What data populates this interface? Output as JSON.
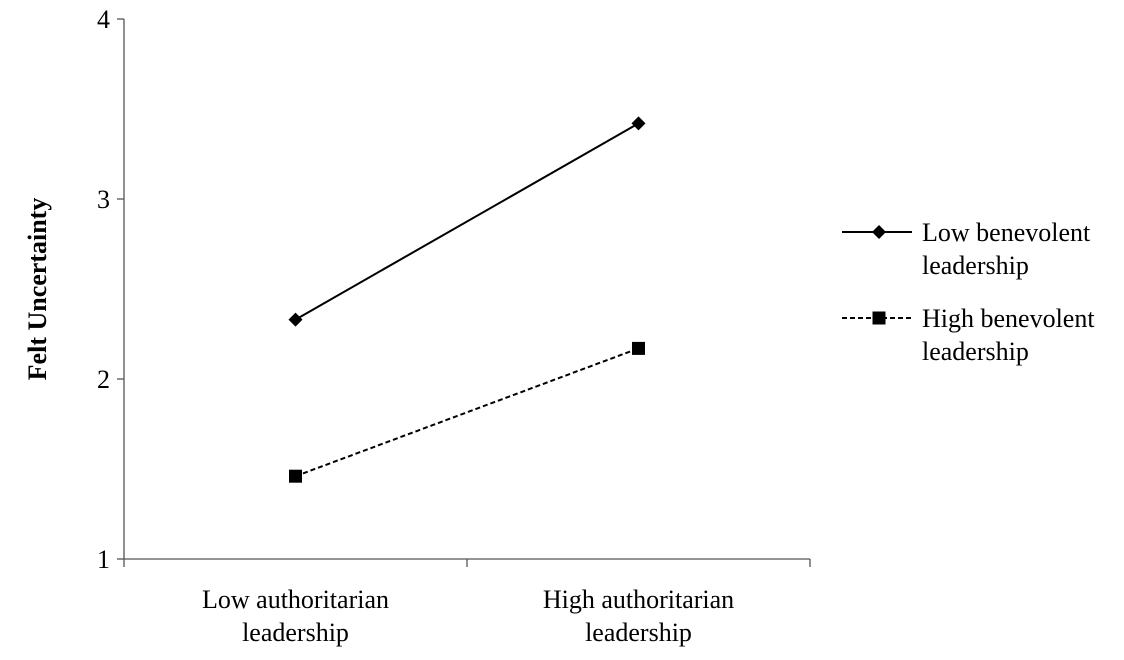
{
  "chart_data": {
    "type": "line",
    "title": "",
    "xlabel": "",
    "ylabel": "Felt Uncertainty",
    "ylim": [
      1,
      4
    ],
    "yticks": [
      "1",
      "2",
      "3",
      "4"
    ],
    "categories": [
      [
        "Low authoritarian",
        "leadership"
      ],
      [
        "High authoritarian",
        "leadership"
      ]
    ],
    "grid": false,
    "legend_position": "right",
    "series": [
      {
        "name": [
          "Low benevolent",
          "leadership"
        ],
        "values": [
          2.33,
          3.42
        ],
        "marker": "diamond",
        "line_style": "solid",
        "color": "#000000"
      },
      {
        "name": [
          "High benevolent",
          "leadership"
        ],
        "values": [
          1.46,
          2.17
        ],
        "marker": "square",
        "line_style": "dashed",
        "color": "#000000"
      }
    ]
  }
}
